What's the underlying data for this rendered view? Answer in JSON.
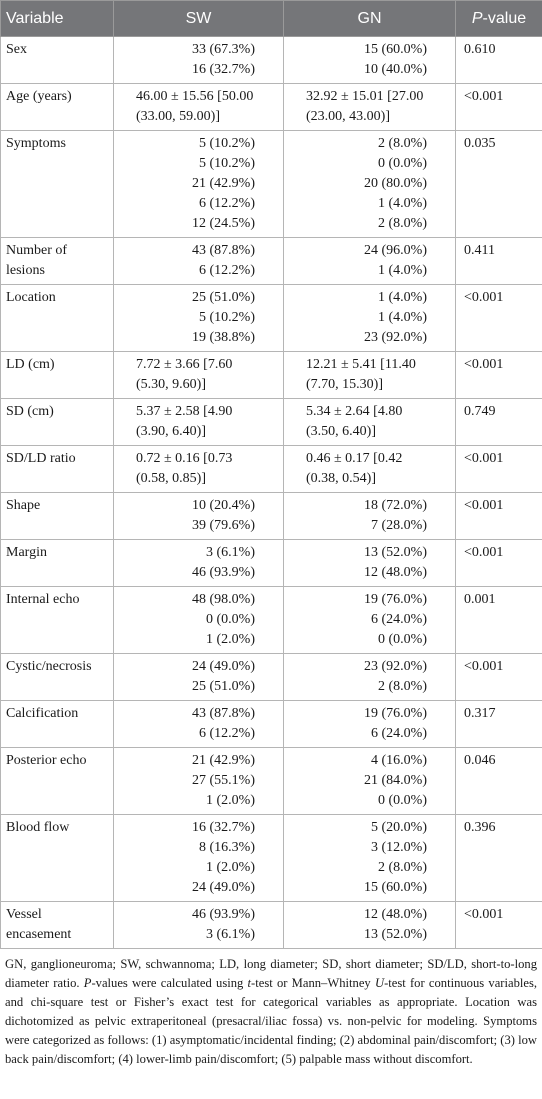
{
  "table": {
    "header": [
      {
        "text": "Variable"
      },
      {
        "text": "SW"
      },
      {
        "text": "GN"
      },
      {
        "italic": "P",
        "text": "-value"
      }
    ],
    "rows": [
      {
        "variable": "Sex",
        "sw": [
          "33 (67.3%)",
          "16 (32.7%)"
        ],
        "gn": [
          "15 (60.0%)",
          "10 (40.0%)"
        ],
        "p": "0.610"
      },
      {
        "variable": "Age (years)",
        "sw": [
          "46.00 ± 15.56 [50.00 (33.00, 59.00)]"
        ],
        "gn": [
          "32.92 ± 15.01 [27.00 (23.00, 43.00)]"
        ],
        "p": "<0.001"
      },
      {
        "variable": "Symptoms",
        "sw": [
          "5 (10.2%)",
          "5 (10.2%)",
          "21 (42.9%)",
          "6 (12.2%)",
          "12 (24.5%)"
        ],
        "gn": [
          "2 (8.0%)",
          "0 (0.0%)",
          "20 (80.0%)",
          "1 (4.0%)",
          "2 (8.0%)"
        ],
        "p": "0.035"
      },
      {
        "variable": "Number of lesions",
        "sw": [
          "43 (87.8%)",
          "6 (12.2%)"
        ],
        "gn": [
          "24 (96.0%)",
          "1 (4.0%)"
        ],
        "p": "0.411"
      },
      {
        "variable": "Location",
        "sw": [
          "25 (51.0%)",
          "5 (10.2%)",
          "19 (38.8%)"
        ],
        "gn": [
          "1 (4.0%)",
          "1 (4.0%)",
          "23 (92.0%)"
        ],
        "p": "<0.001"
      },
      {
        "variable": "LD (cm)",
        "sw": [
          "7.72 ± 3.66 [7.60 (5.30, 9.60)]"
        ],
        "gn": [
          "12.21 ± 5.41 [11.40 (7.70, 15.30)]"
        ],
        "p": "<0.001"
      },
      {
        "variable": "SD (cm)",
        "sw": [
          "5.37 ± 2.58 [4.90 (3.90, 6.40)]"
        ],
        "gn": [
          "5.34 ± 2.64 [4.80 (3.50, 6.40)]"
        ],
        "p": "0.749"
      },
      {
        "variable": "SD/LD ratio",
        "sw": [
          "0.72 ± 0.16 [0.73 (0.58, 0.85)]"
        ],
        "gn": [
          "0.46 ± 0.17 [0.42 (0.38, 0.54)]"
        ],
        "p": "<0.001"
      },
      {
        "variable": "Shape",
        "sw": [
          "10 (20.4%)",
          "39 (79.6%)"
        ],
        "gn": [
          "18 (72.0%)",
          "7 (28.0%)"
        ],
        "p": "<0.001"
      },
      {
        "variable": "Margin",
        "sw": [
          "3 (6.1%)",
          "46 (93.9%)"
        ],
        "gn": [
          "13 (52.0%)",
          "12 (48.0%)"
        ],
        "p": "<0.001"
      },
      {
        "variable": "Internal echo",
        "sw": [
          "48 (98.0%)",
          "0 (0.0%)",
          "1 (2.0%)"
        ],
        "gn": [
          "19 (76.0%)",
          "6 (24.0%)",
          "0 (0.0%)"
        ],
        "p": "0.001"
      },
      {
        "variable": "Cystic/necrosis",
        "sw": [
          "24 (49.0%)",
          "25 (51.0%)"
        ],
        "gn": [
          "23 (92.0%)",
          "2 (8.0%)"
        ],
        "p": "<0.001"
      },
      {
        "variable": "Calcification",
        "sw": [
          "43 (87.8%)",
          "6 (12.2%)"
        ],
        "gn": [
          "19 (76.0%)",
          "6 (24.0%)"
        ],
        "p": "0.317"
      },
      {
        "variable": "Posterior echo",
        "sw": [
          "21 (42.9%)",
          "27 (55.1%)",
          "1 (2.0%)"
        ],
        "gn": [
          "4 (16.0%)",
          "21 (84.0%)",
          "0 (0.0%)"
        ],
        "p": "0.046"
      },
      {
        "variable": "Blood flow",
        "sw": [
          "16 (32.7%)",
          "8 (16.3%)",
          "1 (2.0%)",
          "24 (49.0%)"
        ],
        "gn": [
          "5 (20.0%)",
          "3 (12.0%)",
          "2 (8.0%)",
          "15 (60.0%)"
        ],
        "p": "0.396"
      },
      {
        "variable": "Vessel encasement",
        "sw": [
          "46 (93.9%)",
          "3 (6.1%)"
        ],
        "gn": [
          "12 (48.0%)",
          "13 (52.0%)"
        ],
        "p": "<0.001"
      }
    ]
  },
  "footnote": [
    {
      "text": "GN, ganglioneuroma; SW, schwannoma; LD, long diameter; SD, short diameter; SD/LD, short-to-long diameter ratio. "
    },
    {
      "text": "P",
      "italic": true
    },
    {
      "text": "-values were calculated using "
    },
    {
      "text": "t",
      "italic": true
    },
    {
      "text": "-test or Mann–Whitney "
    },
    {
      "text": "U",
      "italic": true
    },
    {
      "text": "-test for continuous variables, and chi-square test or Fisher’s exact test for categorical variables as appropriate. Location was dichotomized as pelvic extraperitoneal (presacral/iliac fossa) vs. non-pelvic for modeling. Symptoms were categorized as follows: (1) asymptomatic/incidental finding; (2) abdominal pain/discomfort; (3) low back pain/discomfort; (4) lower-limb pain/discomfort; (5) palpable mass without discomfort."
    }
  ]
}
